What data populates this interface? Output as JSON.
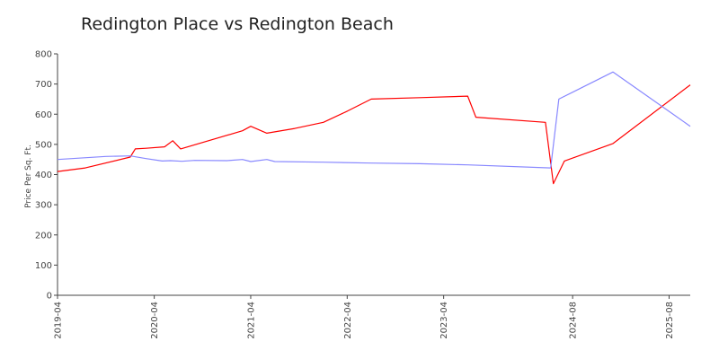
{
  "chart_data": {
    "type": "line",
    "title": "Redington Place vs Redington Beach",
    "ylabel": "Price Per Sq. Ft.",
    "xlabel": "",
    "ylim": [
      0,
      800
    ],
    "xlim": [
      "2019-04-01",
      "2025-10-20"
    ],
    "grid": false,
    "y_ticks": [
      0,
      100,
      200,
      300,
      400,
      500,
      600,
      700,
      800
    ],
    "x_ticks": [
      {
        "label": "2019-04",
        "date": "2019-04-01"
      },
      {
        "label": "2020-04",
        "date": "2020-04-01"
      },
      {
        "label": "2021-04",
        "date": "2021-04-01"
      },
      {
        "label": "2022-04",
        "date": "2022-04-01"
      },
      {
        "label": "2023-04",
        "date": "2023-04-01"
      },
      {
        "label": "2024-08",
        "date": "2024-08-01"
      },
      {
        "label": "2025-08",
        "date": "2025-08-01"
      }
    ],
    "series": [
      {
        "color": "#ff0000",
        "points": [
          [
            "2019-04-01",
            410
          ],
          [
            "2019-07-15",
            422
          ],
          [
            "2020-01-01",
            458
          ],
          [
            "2020-01-20",
            485
          ],
          [
            "2020-03-01",
            487
          ],
          [
            "2020-05-10",
            492
          ],
          [
            "2020-06-10",
            512
          ],
          [
            "2020-07-10",
            485
          ],
          [
            "2021-03-01",
            545
          ],
          [
            "2021-04-01",
            560
          ],
          [
            "2021-06-01",
            537
          ],
          [
            "2021-09-15",
            553
          ],
          [
            "2022-01-01",
            573
          ],
          [
            "2022-04-01",
            610
          ],
          [
            "2022-07-01",
            650
          ],
          [
            "2023-01-01",
            655
          ],
          [
            "2023-07-01",
            660
          ],
          [
            "2023-08-01",
            590
          ],
          [
            "2024-04-20",
            573
          ],
          [
            "2024-05-20",
            370
          ],
          [
            "2024-07-01",
            445
          ],
          [
            "2025-01-01",
            503
          ],
          [
            "2025-10-20",
            697
          ]
        ]
      },
      {
        "color": "#8888ff",
        "points": [
          [
            "2019-04-01",
            450
          ],
          [
            "2019-10-01",
            460
          ],
          [
            "2020-01-01",
            462
          ],
          [
            "2020-03-01",
            453
          ],
          [
            "2020-05-01",
            445
          ],
          [
            "2020-06-01",
            446
          ],
          [
            "2020-07-15",
            444
          ],
          [
            "2020-09-01",
            447
          ],
          [
            "2021-01-01",
            446
          ],
          [
            "2021-03-01",
            450
          ],
          [
            "2021-04-01",
            443
          ],
          [
            "2021-06-01",
            450
          ],
          [
            "2021-07-01",
            443
          ],
          [
            "2022-01-01",
            441
          ],
          [
            "2022-07-01",
            438
          ],
          [
            "2023-01-01",
            436
          ],
          [
            "2023-07-01",
            432
          ],
          [
            "2024-05-10",
            422
          ],
          [
            "2024-06-10",
            650
          ],
          [
            "2025-01-01",
            740
          ],
          [
            "2025-10-20",
            560
          ]
        ]
      }
    ]
  }
}
